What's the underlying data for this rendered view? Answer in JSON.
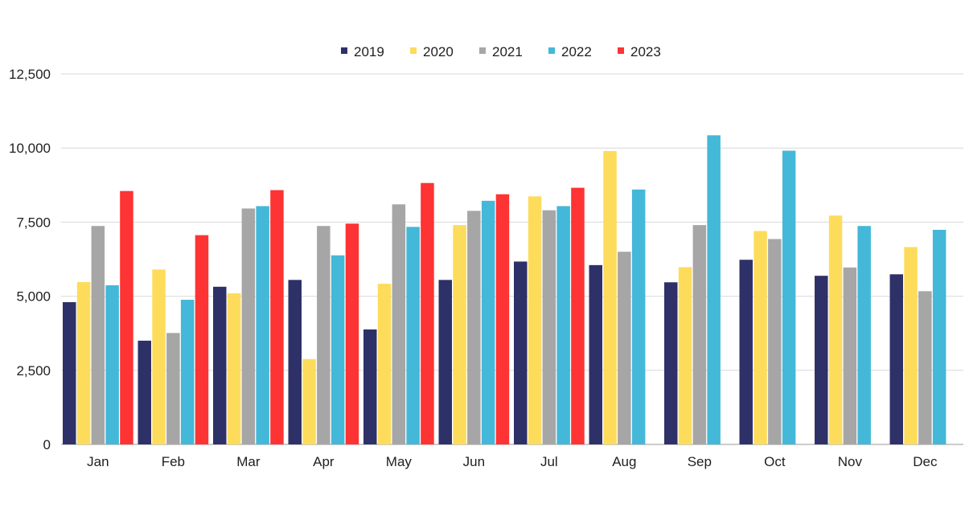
{
  "chart_data": {
    "type": "bar",
    "categories": [
      "Jan",
      "Feb",
      "Mar",
      "Apr",
      "May",
      "Jun",
      "Jul",
      "Aug",
      "Sep",
      "Oct",
      "Nov",
      "Dec"
    ],
    "series": [
      {
        "name": "2019",
        "color": "#2e3168",
        "values": [
          4800,
          3500,
          5320,
          5550,
          3880,
          5550,
          6170,
          6050,
          5470,
          6230,
          5690,
          5740
        ]
      },
      {
        "name": "2020",
        "color": "#fddc5c",
        "values": [
          5480,
          5900,
          5100,
          2880,
          5420,
          7400,
          8370,
          9900,
          5980,
          7200,
          7720,
          6660
        ]
      },
      {
        "name": "2021",
        "color": "#a6a6a6",
        "values": [
          7370,
          3760,
          7960,
          7370,
          8100,
          7880,
          7900,
          6500,
          7400,
          6930,
          5970,
          5170
        ]
      },
      {
        "name": "2022",
        "color": "#44b8d8",
        "values": [
          5370,
          4880,
          8040,
          6380,
          7340,
          8220,
          8040,
          8600,
          10430,
          9910,
          7370,
          7240
        ]
      },
      {
        "name": "2023",
        "color": "#fe3333",
        "values": [
          8550,
          7060,
          8580,
          7450,
          8820,
          8440,
          8660,
          null,
          null,
          null,
          null,
          null
        ]
      }
    ],
    "y_ticks": [
      "0",
      "2,500",
      "5,000",
      "7,500",
      "10,000",
      "12,500"
    ],
    "ylim": [
      0,
      12500
    ],
    "grid": true,
    "legend_position": "top-center",
    "title": "",
    "xlabel": "",
    "ylabel": ""
  }
}
